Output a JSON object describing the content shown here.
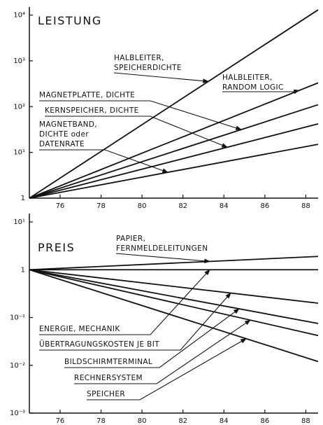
{
  "chart_data": [
    {
      "type": "line",
      "title": "LEISTUNG",
      "log_y": true,
      "x": [
        74.5,
        88.6
      ],
      "xlim": [
        74.5,
        88.6
      ],
      "xticks": [
        76,
        78,
        80,
        82,
        84,
        86,
        88
      ],
      "ylim": [
        1,
        15000
      ],
      "yticks": [
        1,
        {
          "value": 10,
          "label": "10¹"
        },
        {
          "value": 100,
          "label": "10²"
        },
        {
          "value": 1000,
          "label": "10³"
        },
        {
          "value": 10000,
          "label": "10⁴"
        }
      ],
      "series": [
        {
          "name": "HALBLEITER,\nSPEICHERDICHTE",
          "color": "#111111",
          "values": [
            1,
            13000
          ]
        },
        {
          "name": "HALBLEITER,\nRANDOM LOGIC",
          "color": "#111111",
          "values": [
            1,
            330
          ]
        },
        {
          "name": "MAGNETPLATTE, DICHTE",
          "color": "#111111",
          "values": [
            1,
            110
          ]
        },
        {
          "name": "KERNSPEICHER, DICHTE",
          "color": "#111111",
          "values": [
            1,
            42
          ]
        },
        {
          "name": "MAGNETBAND,\nDICHTE oder\nDATENRATE",
          "color": "#111111",
          "values": [
            1,
            15
          ]
        }
      ]
    },
    {
      "type": "line",
      "title": "PREIS",
      "log_y": true,
      "x": [
        74.5,
        88.6
      ],
      "xlim": [
        74.5,
        88.6
      ],
      "xticks": [
        76,
        78,
        80,
        82,
        84,
        86,
        88
      ],
      "ylim": [
        0.001,
        15
      ],
      "yticks": [
        {
          "value": 0.001,
          "label": "10⁻³"
        },
        {
          "value": 0.01,
          "label": "10⁻²"
        },
        {
          "value": 0.1,
          "label": "10⁻¹"
        },
        1,
        {
          "value": 10,
          "label": "10¹"
        }
      ],
      "series": [
        {
          "name": "PAPIER,\nFERNMELDELEITUNGEN",
          "color": "#111111",
          "values": [
            1,
            1.9
          ]
        },
        {
          "name": "ENERGIE, MECHANIK",
          "color": "#111111",
          "values": [
            1,
            1
          ]
        },
        {
          "name": "ÜBERTRAGUNGSKOSTEN JE BIT",
          "color": "#111111",
          "values": [
            1,
            0.2
          ]
        },
        {
          "name": "BILDSCHIRMTERMINAL",
          "color": "#111111",
          "values": [
            1,
            0.075
          ]
        },
        {
          "name": "RECHNERSYSTEM",
          "color": "#111111",
          "values": [
            1,
            0.042
          ]
        },
        {
          "name": "SPEICHER",
          "color": "#111111",
          "values": [
            1,
            0.012
          ]
        }
      ]
    }
  ]
}
